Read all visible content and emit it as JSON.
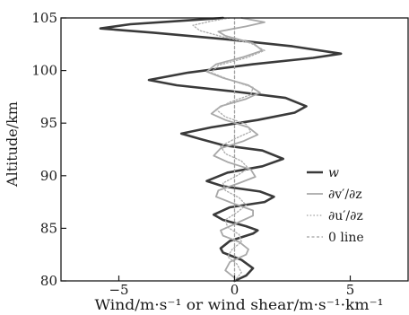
{
  "chart_data": {
    "type": "line",
    "xlabel": "Wind/m·s⁻¹ or wind shear/m·s⁻¹·km⁻¹",
    "ylabel": "Altitude/km",
    "xlim": [
      -7.5,
      7.5
    ],
    "ylim": [
      80,
      105
    ],
    "xticks": [
      -5,
      0,
      5
    ],
    "xtick_labels": [
      "−5",
      "0",
      "5"
    ],
    "yticks": [
      80,
      85,
      90,
      95,
      100,
      105
    ],
    "ytick_labels": [
      "80",
      "85",
      "90",
      "95",
      "100",
      "105"
    ],
    "grid": false,
    "legend_position": "right",
    "series": [
      {
        "name": "w",
        "color": "#3a3a3a",
        "style": "solid-thick",
        "points": [
          [
            0,
            80
          ],
          [
            0.5,
            80.5
          ],
          [
            0.8,
            81.2
          ],
          [
            0.3,
            82.0
          ],
          [
            -0.5,
            82.7
          ],
          [
            -0.6,
            83.1
          ],
          [
            -0.2,
            83.8
          ],
          [
            0.8,
            84.5
          ],
          [
            1.0,
            84.8
          ],
          [
            0.5,
            85.2
          ],
          [
            -0.5,
            85.8
          ],
          [
            -0.9,
            86.3
          ],
          [
            -0.2,
            87.0
          ],
          [
            1.3,
            87.5
          ],
          [
            1.7,
            88.0
          ],
          [
            1.1,
            88.5
          ],
          [
            -0.5,
            89.0
          ],
          [
            -1.2,
            89.5
          ],
          [
            -0.3,
            90.3
          ],
          [
            1.2,
            90.9
          ],
          [
            2.1,
            91.6
          ],
          [
            1.2,
            92.4
          ],
          [
            -0.5,
            92.9
          ],
          [
            -1.5,
            93.5
          ],
          [
            -2.3,
            94.0
          ],
          [
            -1.0,
            94.6
          ],
          [
            1.0,
            95.3
          ],
          [
            2.6,
            96.0
          ],
          [
            3.1,
            96.6
          ],
          [
            2.2,
            97.4
          ],
          [
            0.0,
            98.0
          ],
          [
            -2.5,
            98.6
          ],
          [
            -3.7,
            99.1
          ],
          [
            -2.0,
            99.8
          ],
          [
            0.8,
            100.6
          ],
          [
            3.4,
            101.2
          ],
          [
            4.6,
            101.6
          ],
          [
            2.5,
            102.3
          ],
          [
            -0.5,
            103.0
          ],
          [
            -3.5,
            103.6
          ],
          [
            -5.8,
            104.0
          ],
          [
            -4.5,
            104.4
          ],
          [
            -1.8,
            104.8
          ],
          [
            -0.5,
            105.0
          ]
        ]
      },
      {
        "name": "∂v′/∂z",
        "color": "#a8a8a8",
        "style": "solid",
        "points": [
          [
            0,
            80.3
          ],
          [
            -0.4,
            81.0
          ],
          [
            -0.2,
            81.8
          ],
          [
            0.5,
            82.5
          ],
          [
            0.6,
            83.0
          ],
          [
            0.2,
            83.7
          ],
          [
            -0.5,
            84.3
          ],
          [
            -0.6,
            84.8
          ],
          [
            0.1,
            85.5
          ],
          [
            0.8,
            86.2
          ],
          [
            0.8,
            86.7
          ],
          [
            -0.1,
            87.4
          ],
          [
            -0.8,
            88.0
          ],
          [
            -0.7,
            88.6
          ],
          [
            0.2,
            89.3
          ],
          [
            0.9,
            89.9
          ],
          [
            0.7,
            90.6
          ],
          [
            -0.3,
            91.3
          ],
          [
            -0.9,
            91.9
          ],
          [
            -0.6,
            92.6
          ],
          [
            0.4,
            93.3
          ],
          [
            1.0,
            93.9
          ],
          [
            0.6,
            94.6
          ],
          [
            -0.4,
            95.3
          ],
          [
            -1.0,
            95.9
          ],
          [
            -0.6,
            96.6
          ],
          [
            0.5,
            97.3
          ],
          [
            1.1,
            97.9
          ],
          [
            0.6,
            98.6
          ],
          [
            -0.5,
            99.3
          ],
          [
            -1.2,
            99.9
          ],
          [
            -0.8,
            100.6
          ],
          [
            0.4,
            101.3
          ],
          [
            1.2,
            101.9
          ],
          [
            0.8,
            102.6
          ],
          [
            -0.4,
            103.3
          ],
          [
            -0.7,
            103.7
          ],
          [
            0.5,
            104.2
          ],
          [
            1.3,
            104.6
          ],
          [
            0.3,
            105.0
          ]
        ]
      },
      {
        "name": "∂u′/∂z",
        "color": "#b0b0b0",
        "style": "dotted",
        "points": [
          [
            0,
            80.0
          ],
          [
            0.3,
            80.8
          ],
          [
            0.1,
            81.6
          ],
          [
            -0.3,
            82.3
          ],
          [
            -0.1,
            83.0
          ],
          [
            0.3,
            83.7
          ],
          [
            0.2,
            84.4
          ],
          [
            -0.3,
            85.1
          ],
          [
            -0.4,
            85.8
          ],
          [
            0.1,
            86.5
          ],
          [
            0.5,
            87.2
          ],
          [
            0.2,
            87.9
          ],
          [
            -0.4,
            88.6
          ],
          [
            -0.5,
            89.3
          ],
          [
            0.1,
            90.0
          ],
          [
            0.6,
            90.7
          ],
          [
            0.3,
            91.4
          ],
          [
            -0.4,
            92.1
          ],
          [
            -0.6,
            92.8
          ],
          [
            0.0,
            93.5
          ],
          [
            0.7,
            94.2
          ],
          [
            0.5,
            94.9
          ],
          [
            -0.4,
            95.6
          ],
          [
            -0.8,
            96.3
          ],
          [
            -0.2,
            97.0
          ],
          [
            0.7,
            97.7
          ],
          [
            0.8,
            98.4
          ],
          [
            -0.2,
            99.1
          ],
          [
            -1.0,
            99.8
          ],
          [
            -0.7,
            100.5
          ],
          [
            0.5,
            101.2
          ],
          [
            1.3,
            101.9
          ],
          [
            0.7,
            102.6
          ],
          [
            -0.5,
            103.2
          ],
          [
            -1.5,
            103.8
          ],
          [
            -1.8,
            104.3
          ],
          [
            -1.0,
            104.7
          ],
          [
            -0.2,
            105.0
          ]
        ]
      },
      {
        "name": "0 line",
        "color": "#a0a0a0",
        "style": "dashed",
        "points": [
          [
            0,
            80
          ],
          [
            0,
            105
          ]
        ]
      }
    ]
  }
}
